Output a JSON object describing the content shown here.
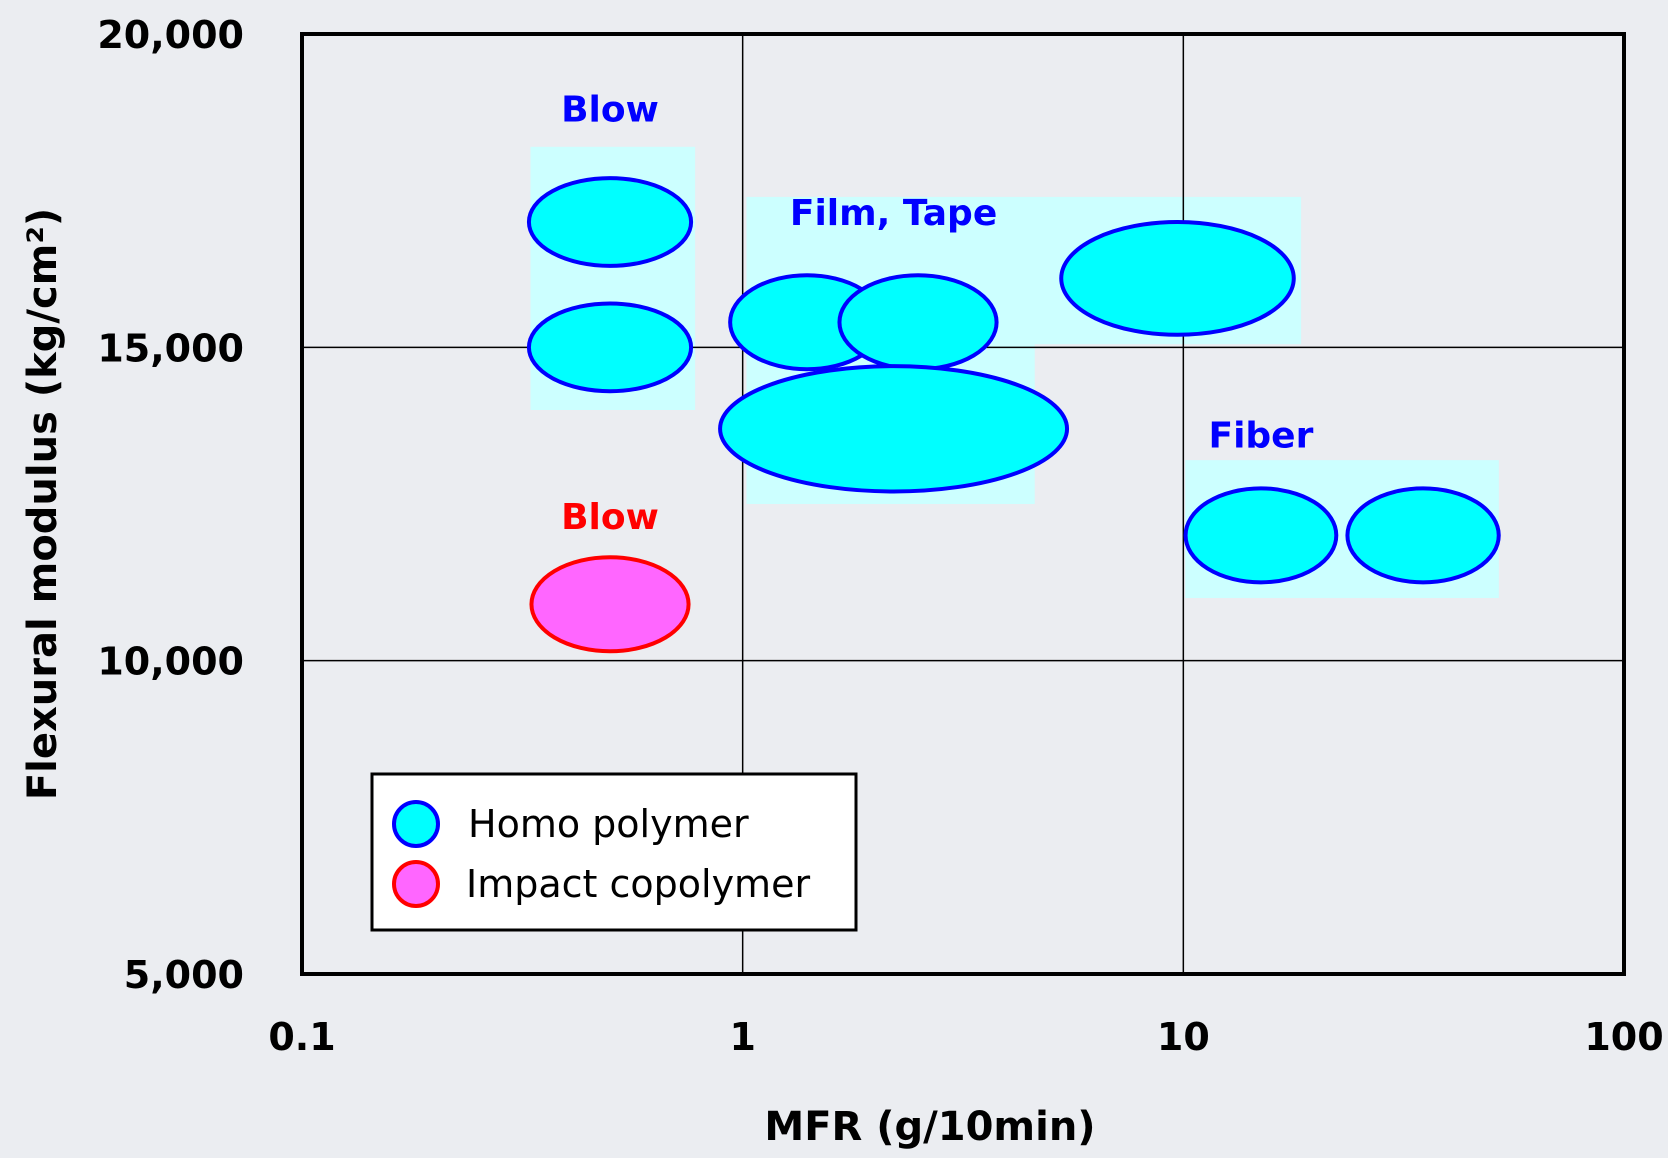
{
  "chart_data": {
    "type": "scatter",
    "xlabel": "MFR (g/10min)",
    "ylabel": "Flexural modulus (kg/cm²)",
    "xscale": "log",
    "xlim": [
      0.1,
      100
    ],
    "ylim": [
      5000,
      20000
    ],
    "x_ticks": [
      0.1,
      1,
      10,
      100
    ],
    "x_tick_labels": [
      "0.1",
      "1",
      "10",
      "100"
    ],
    "y_ticks": [
      5000,
      10000,
      15000,
      20000
    ],
    "y_tick_labels": [
      "5,000",
      "10,000",
      "15,000",
      "20,000"
    ],
    "grid": true,
    "legend_position": "bottom-left",
    "colors": {
      "homo_fill": "#00ffff",
      "homo_stroke": "#0000ff",
      "impact_fill": "#ff66ff",
      "impact_stroke": "#ff0000",
      "region_fill": "#ccffff",
      "homo_label": "#0000ff",
      "impact_label": "#ff0000"
    },
    "series": [
      {
        "name": "Homo polymer",
        "points": [
          {
            "x": 0.5,
            "y": 17000,
            "x_span": [
              0.33,
              0.77
            ],
            "y_span": [
              16300,
              17700
            ]
          },
          {
            "x": 0.5,
            "y": 15000,
            "x_span": [
              0.33,
              0.77
            ],
            "y_span": [
              14300,
              15700
            ]
          },
          {
            "x": 1.4,
            "y": 15400,
            "x_span": [
              0.94,
              2.1
            ],
            "y_span": [
              14650,
              16150
            ]
          },
          {
            "x": 2.5,
            "y": 15400,
            "x_span": [
              1.65,
              3.75
            ],
            "y_span": [
              14650,
              16150
            ]
          },
          {
            "x": 2.2,
            "y": 13700,
            "x_span": [
              0.93,
              5.7
            ],
            "y_span": [
              12700,
              14700
            ]
          },
          {
            "x": 9.7,
            "y": 16100,
            "x_span": [
              5.4,
              18.2
            ],
            "y_span": [
              15200,
              17000
            ]
          },
          {
            "x": 15,
            "y": 12000,
            "x_span": [
              10.1,
              22.2
            ],
            "y_span": [
              11250,
              12750
            ]
          },
          {
            "x": 35,
            "y": 12000,
            "x_span": [
              23.9,
              52.7
            ],
            "y_span": [
              11250,
              12750
            ]
          }
        ]
      },
      {
        "name": "Impact copolymer",
        "points": [
          {
            "x": 0.5,
            "y": 10900,
            "x_span": [
              0.33,
              0.75
            ],
            "y_span": [
              10150,
              11650
            ]
          }
        ]
      }
    ],
    "regions": [
      {
        "label": "Blow",
        "x_range": [
          0.33,
          0.78
        ],
        "y_range": [
          14000,
          18200
        ]
      },
      {
        "label": "Film, Tape",
        "x_range": [
          1.02,
          18.5
        ],
        "y_range": [
          15050,
          17400
        ]
      },
      {
        "label": "",
        "x_range": [
          1.02,
          4.6
        ],
        "y_range": [
          12500,
          15050
        ]
      },
      {
        "label": "Fiber",
        "x_range": [
          10.1,
          52
        ],
        "y_range": [
          11000,
          13200
        ]
      }
    ],
    "annotations": [
      {
        "text": "Blow",
        "x": 0.5,
        "y": 18600,
        "color": "homo_label"
      },
      {
        "text": "Film, Tape",
        "x": 2.2,
        "y": 16950,
        "color": "homo_label"
      },
      {
        "text": "Fiber",
        "x": 15,
        "y": 13400,
        "color": "homo_label"
      },
      {
        "text": "Blow",
        "x": 0.5,
        "y": 12100,
        "color": "impact_label"
      }
    ]
  }
}
